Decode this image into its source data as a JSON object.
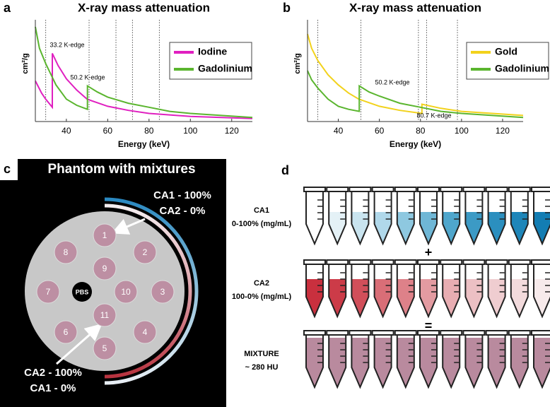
{
  "panel_labels": [
    "a",
    "b",
    "c",
    "d"
  ],
  "chart_data": [
    {
      "type": "line",
      "title": "X-ray mass attenuation",
      "xlabel": "Energy (keV)",
      "ylabel": "cm²/g",
      "xlim": [
        25,
        130
      ],
      "ylim": [
        0,
        1
      ],
      "xticks": [
        40,
        60,
        80,
        100,
        120
      ],
      "vlines": [
        30,
        51,
        64,
        72,
        85
      ],
      "annotations": [
        "33.2 K-edge",
        "50.2 K-edge"
      ],
      "series": [
        {
          "name": "Iodine",
          "color": "#e020c0",
          "x": [
            25,
            28,
            30,
            33.2,
            33.2,
            36,
            40,
            45,
            50,
            60,
            70,
            80,
            90,
            100,
            115,
            130
          ],
          "values": [
            0.4,
            0.28,
            0.22,
            0.14,
            0.67,
            0.55,
            0.42,
            0.31,
            0.22,
            0.15,
            0.11,
            0.08,
            0.065,
            0.05,
            0.04,
            0.03
          ]
        },
        {
          "name": "Gadolinium",
          "color": "#5ab52e",
          "x": [
            25,
            27,
            30,
            35,
            40,
            45,
            50.2,
            50.2,
            55,
            60,
            70,
            80,
            90,
            100,
            115,
            130
          ],
          "values": [
            0.93,
            0.72,
            0.57,
            0.36,
            0.22,
            0.16,
            0.12,
            0.35,
            0.29,
            0.24,
            0.18,
            0.14,
            0.1,
            0.08,
            0.06,
            0.04
          ]
        }
      ],
      "legend": "upper right"
    },
    {
      "type": "line",
      "title": "X-ray mass attenuation",
      "xlabel": "Energy (keV)",
      "ylabel": "cm²/g",
      "xlim": [
        25,
        130
      ],
      "ylim": [
        0,
        1
      ],
      "xticks": [
        40,
        60,
        80,
        100,
        120
      ],
      "vlines": [
        30,
        51,
        79,
        83,
        98
      ],
      "annotations": [
        "50.2 K-edge",
        "80.7 K-edge"
      ],
      "series": [
        {
          "name": "Gold",
          "color": "#f2d21c",
          "x": [
            25,
            27,
            30,
            35,
            40,
            45,
            50,
            60,
            70,
            80.7,
            80.7,
            90,
            100,
            115,
            130
          ],
          "values": [
            0.86,
            0.72,
            0.6,
            0.46,
            0.36,
            0.28,
            0.22,
            0.15,
            0.11,
            0.08,
            0.17,
            0.13,
            0.1,
            0.08,
            0.06
          ]
        },
        {
          "name": "Gadolinium",
          "color": "#5ab52e",
          "x": [
            25,
            27,
            30,
            35,
            40,
            45,
            50.2,
            50.2,
            55,
            60,
            70,
            80,
            90,
            100,
            115,
            130
          ],
          "values": [
            0.5,
            0.41,
            0.33,
            0.22,
            0.15,
            0.12,
            0.1,
            0.35,
            0.29,
            0.25,
            0.18,
            0.14,
            0.1,
            0.08,
            0.06,
            0.04
          ]
        }
      ],
      "legend": "upper right"
    }
  ],
  "phantom": {
    "title": "Phantom with mixtures",
    "wells": [
      "1",
      "2",
      "3",
      "4",
      "5",
      "6",
      "7",
      "8",
      "9",
      "10",
      "11"
    ],
    "center_label": "PBS",
    "annotations": [
      "CA1 - 100%",
      "CA2 - 0%",
      "CA2 - 100%",
      "CA1 - 0%"
    ]
  },
  "tube_rows": [
    {
      "label": "CA1",
      "sublabel": "0-100% (mg/mL)",
      "colors": [
        "#ffffff",
        "#e4f1f6",
        "#c9e4ef",
        "#b0d8ea",
        "#8ec8e0",
        "#6fb7d6",
        "#4fa6cc",
        "#3c9ac5",
        "#2b8fbf",
        "#1e86b9",
        "#137db3"
      ]
    },
    {
      "label": "CA2",
      "sublabel": "100-0% (mg/mL)",
      "colors": [
        "#c9303e",
        "#cc3b48",
        "#d14f5a",
        "#d96e77",
        "#de8189",
        "#e39ba1",
        "#e8adb2",
        "#ecc0c4",
        "#efcdd0",
        "#f2dadc",
        "#f7eaeb"
      ]
    },
    {
      "label": "MIXTURE",
      "sublabel": "~ 280 HU",
      "colors": [
        "#b98a9e",
        "#b98a9e",
        "#b98a9e",
        "#b98a9e",
        "#b98a9e",
        "#b98a9e",
        "#b98a9e",
        "#b98a9e",
        "#b98a9e",
        "#b98a9e",
        "#b98a9e"
      ]
    }
  ],
  "operators": [
    "+",
    "="
  ]
}
